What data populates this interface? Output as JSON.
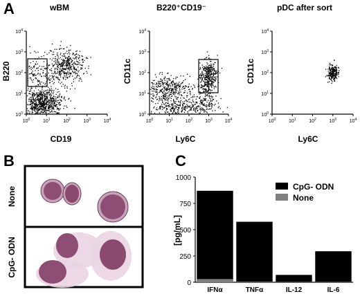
{
  "panel_labels": {
    "a": "A",
    "b": "B",
    "c": "C"
  },
  "flow_panels": [
    {
      "title": "wBM",
      "ylabel": "B220",
      "xlabel": "CD19"
    },
    {
      "title": "B220⁺CD19⁻",
      "ylabel": "CD11c",
      "xlabel": "Ly6C"
    },
    {
      "title": "pDC after sort",
      "ylabel": "CD11c",
      "xlabel": "Ly6C"
    }
  ],
  "log_ticks": [
    {
      "base": "10",
      "exp": "0"
    },
    {
      "base": "10",
      "exp": "1"
    },
    {
      "base": "10",
      "exp": "2"
    },
    {
      "base": "10",
      "exp": "3"
    },
    {
      "base": "10",
      "exp": "4"
    }
  ],
  "micro_panel": {
    "row_labels": [
      "None",
      "CpG- ODN"
    ]
  },
  "chart_data": {
    "type": "bar",
    "ylabel": "[pg/mL]",
    "ylim": [
      0,
      1000
    ],
    "yticks": [
      0,
      250,
      500,
      750,
      1000
    ],
    "categories": [
      "IFNα",
      "TNFα",
      "IL-12",
      "IL-6"
    ],
    "series": [
      {
        "name": "CpG- ODN",
        "color": "#000000",
        "values": [
          870,
          575,
          70,
          295
        ]
      },
      {
        "name": "None",
        "color": "#808080",
        "values": [
          30,
          5,
          3,
          3
        ]
      }
    ],
    "legend_position": "top-right"
  }
}
